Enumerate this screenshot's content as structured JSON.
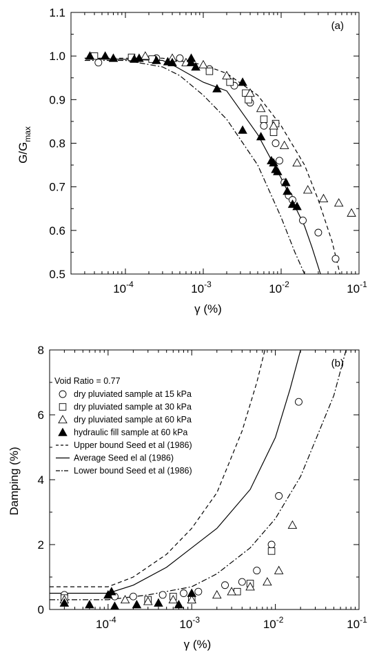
{
  "chart_data": [
    {
      "type": "scatter",
      "panel_label": "(a)",
      "xlabel": "γ (%)",
      "ylabel_base": "G/G",
      "ylabel_sub": "max",
      "x_scale": "log",
      "xlim": [
        2e-05,
        0.1
      ],
      "ylim": [
        0.5,
        1.1
      ],
      "x_ticks": [
        {
          "value": 0.0001,
          "base": "10",
          "exp": "-4"
        },
        {
          "value": 0.001,
          "base": "10",
          "exp": "-3"
        },
        {
          "value": 0.01,
          "base": "10",
          "exp": "-2"
        },
        {
          "value": 0.1,
          "base": "10",
          "exp": "-1"
        }
      ],
      "y_ticks": [
        {
          "value": 0.5,
          "label": "0.5"
        },
        {
          "value": 0.6,
          "label": "0.6"
        },
        {
          "value": 0.7,
          "label": "0.7"
        },
        {
          "value": 0.8,
          "label": "0.8"
        },
        {
          "value": 0.9,
          "label": "0.9"
        },
        {
          "value": 1.0,
          "label": "1.0"
        },
        {
          "value": 1.1,
          "label": "1.1"
        }
      ],
      "series": [
        {
          "marker": "circle",
          "points": [
            [
              4.5e-05,
              0.985
            ],
            [
              0.00025,
              0.995
            ],
            [
              0.0005,
              0.995
            ],
            [
              0.0012,
              0.97
            ],
            [
              0.0025,
              0.932
            ],
            [
              0.004,
              0.893
            ],
            [
              0.006,
              0.84
            ],
            [
              0.0085,
              0.8
            ],
            [
              0.0095,
              0.76
            ],
            [
              0.011,
              0.71
            ],
            [
              0.0125,
              0.68
            ],
            [
              0.014,
              0.67
            ],
            [
              0.019,
              0.623
            ],
            [
              0.03,
              0.595
            ],
            [
              0.05,
              0.535
            ]
          ]
        },
        {
          "marker": "square",
          "points": [
            [
              4e-05,
              1.0
            ],
            [
              0.00012,
              0.997
            ],
            [
              0.00022,
              0.993
            ],
            [
              0.0012,
              0.965
            ],
            [
              0.0022,
              0.94
            ],
            [
              0.0035,
              0.915
            ],
            [
              0.0038,
              0.9
            ],
            [
              0.006,
              0.855
            ],
            [
              0.008,
              0.825
            ],
            [
              0.0085,
              0.845
            ]
          ]
        },
        {
          "marker": "triangle",
          "points": [
            [
              0.00018,
              1.0
            ],
            [
              0.0004,
              0.995
            ],
            [
              0.0006,
              0.985
            ],
            [
              0.001,
              0.98
            ],
            [
              0.002,
              0.955
            ],
            [
              0.004,
              0.915
            ],
            [
              0.0055,
              0.88
            ],
            [
              0.008,
              0.84
            ],
            [
              0.011,
              0.795
            ],
            [
              0.016,
              0.755
            ],
            [
              0.022,
              0.693
            ],
            [
              0.035,
              0.673
            ],
            [
              0.055,
              0.663
            ],
            [
              0.08,
              0.64
            ]
          ]
        },
        {
          "marker": "triangle-filled",
          "points": [
            [
              3.5e-05,
              1.0
            ],
            [
              5.5e-05,
              1.0
            ],
            [
              7e-05,
              0.995
            ],
            [
              0.00013,
              0.993
            ],
            [
              0.00015,
              0.995
            ],
            [
              0.00025,
              0.99
            ],
            [
              0.00035,
              0.987
            ],
            [
              0.0004,
              0.985
            ],
            [
              0.0007,
              0.995
            ],
            [
              0.0007,
              0.985
            ],
            [
              0.0008,
              0.975
            ],
            [
              0.0015,
              0.925
            ],
            [
              0.0032,
              0.94
            ],
            [
              0.0032,
              0.83
            ],
            [
              0.0055,
              0.815
            ],
            [
              0.0075,
              0.76
            ],
            [
              0.008,
              0.755
            ],
            [
              0.0085,
              0.74
            ],
            [
              0.009,
              0.735
            ],
            [
              0.0115,
              0.71
            ],
            [
              0.012,
              0.69
            ],
            [
              0.014,
              0.66
            ],
            [
              0.016,
              0.655
            ]
          ]
        }
      ],
      "curves": [
        {
          "style": "dashed",
          "points": [
            [
              3e-05,
              0.995
            ],
            [
              0.0003,
              0.995
            ],
            [
              0.001,
              0.98
            ],
            [
              0.002,
              0.96
            ],
            [
              0.005,
              0.91
            ],
            [
              0.01,
              0.84
            ],
            [
              0.02,
              0.75
            ],
            [
              0.03,
              0.67
            ],
            [
              0.045,
              0.575
            ],
            [
              0.057,
              0.5
            ]
          ]
        },
        {
          "style": "solid",
          "points": [
            [
              3e-05,
              0.995
            ],
            [
              0.0003,
              0.99
            ],
            [
              0.00045,
              0.975
            ],
            [
              0.001,
              0.94
            ],
            [
              0.002,
              0.92
            ],
            [
              0.005,
              0.82
            ],
            [
              0.01,
              0.72
            ],
            [
              0.02,
              0.61
            ],
            [
              0.025,
              0.56
            ],
            [
              0.032,
              0.5
            ]
          ]
        },
        {
          "style": "dashdot",
          "points": [
            [
              3e-05,
              0.99
            ],
            [
              0.0001,
              0.99
            ],
            [
              0.0003,
              0.975
            ],
            [
              0.0005,
              0.955
            ],
            [
              0.001,
              0.91
            ],
            [
              0.002,
              0.855
            ],
            [
              0.005,
              0.75
            ],
            [
              0.01,
              0.63
            ],
            [
              0.015,
              0.55
            ],
            [
              0.02,
              0.5
            ]
          ]
        }
      ]
    },
    {
      "type": "scatter",
      "panel_label": "(b)",
      "xlabel": "γ (%)",
      "ylabel": "Damping (%)",
      "x_scale": "log",
      "xlim": [
        2e-05,
        0.1
      ],
      "ylim": [
        0,
        8
      ],
      "x_ticks": [
        {
          "value": 0.0001,
          "base": "10",
          "exp": "-4"
        },
        {
          "value": 0.001,
          "base": "10",
          "exp": "-3"
        },
        {
          "value": 0.01,
          "base": "10",
          "exp": "-2"
        },
        {
          "value": 0.1,
          "base": "10",
          "exp": "-1"
        }
      ],
      "y_ticks": [
        {
          "value": 0,
          "label": "0"
        },
        {
          "value": 2,
          "label": "2"
        },
        {
          "value": 4,
          "label": "4"
        },
        {
          "value": 6,
          "label": "6"
        },
        {
          "value": 8,
          "label": "8"
        }
      ],
      "legend": {
        "title": "Void Ratio = 0.77",
        "entries": [
          {
            "symbol": "circle",
            "label": "dry pluviated sample at 15 kPa"
          },
          {
            "symbol": "square",
            "label": "dry pluviated sample at 30 kPa"
          },
          {
            "symbol": "triangle",
            "label": "dry pluviated sample at 60 kPa"
          },
          {
            "symbol": "triangle-filled",
            "label": "hydraulic fill sample at 60 kPa"
          },
          {
            "symbol": "dashed",
            "label": "Upper bound Seed et al (1986)"
          },
          {
            "symbol": "solid",
            "label": "Average Seed el al (1986)"
          },
          {
            "symbol": "dashdot",
            "label": "Lower bound Seed et al (1986)"
          }
        ]
      },
      "series": [
        {
          "marker": "circle",
          "points": [
            [
              3e-05,
              0.45
            ],
            [
              0.00012,
              0.4
            ],
            [
              0.0002,
              0.4
            ],
            [
              0.00045,
              0.45
            ],
            [
              0.0008,
              0.5
            ],
            [
              0.0012,
              0.55
            ],
            [
              0.0025,
              0.75
            ],
            [
              0.004,
              0.85
            ],
            [
              0.006,
              1.2
            ],
            [
              0.009,
              2.0
            ],
            [
              0.011,
              3.5
            ],
            [
              0.019,
              6.4
            ]
          ]
        },
        {
          "marker": "square",
          "points": [
            [
              3e-05,
              0.35
            ],
            [
              0.0003,
              0.3
            ],
            [
              0.0006,
              0.4
            ],
            [
              0.001,
              0.3
            ],
            [
              0.0035,
              0.55
            ],
            [
              0.005,
              0.8
            ],
            [
              0.009,
              1.8
            ]
          ]
        },
        {
          "marker": "triangle",
          "points": [
            [
              3e-05,
              0.3
            ],
            [
              0.00016,
              0.3
            ],
            [
              0.0003,
              0.25
            ],
            [
              0.0006,
              0.3
            ],
            [
              0.001,
              0.3
            ],
            [
              0.002,
              0.45
            ],
            [
              0.003,
              0.55
            ],
            [
              0.005,
              0.7
            ],
            [
              0.008,
              0.85
            ],
            [
              0.011,
              1.2
            ],
            [
              0.016,
              2.6
            ]
          ]
        },
        {
          "marker": "triangle-filled",
          "points": [
            [
              3e-05,
              0.2
            ],
            [
              6e-05,
              0.15
            ],
            [
              0.0001,
              0.45
            ],
            [
              0.00011,
              0.55
            ],
            [
              0.00012,
              0.1
            ],
            [
              0.00022,
              0.15
            ],
            [
              0.0004,
              0.2
            ],
            [
              0.0007,
              0.15
            ],
            [
              0.001,
              0.5
            ]
          ]
        }
      ],
      "curves": [
        {
          "style": "dashed",
          "points": [
            [
              2e-05,
              0.7
            ],
            [
              0.0001,
              0.7
            ],
            [
              0.0002,
              1.0
            ],
            [
              0.0005,
              1.7
            ],
            [
              0.001,
              2.5
            ],
            [
              0.002,
              3.6
            ],
            [
              0.004,
              5.5
            ],
            [
              0.006,
              7.0
            ],
            [
              0.0075,
              8.0
            ]
          ]
        },
        {
          "style": "solid",
          "points": [
            [
              2e-05,
              0.5
            ],
            [
              0.0001,
              0.5
            ],
            [
              0.0002,
              0.75
            ],
            [
              0.0005,
              1.3
            ],
            [
              0.001,
              1.9
            ],
            [
              0.002,
              2.5
            ],
            [
              0.005,
              3.7
            ],
            [
              0.01,
              5.3
            ],
            [
              0.015,
              6.8
            ],
            [
              0.02,
              8.0
            ]
          ]
        },
        {
          "style": "dashdot",
          "points": [
            [
              2e-05,
              0.3
            ],
            [
              0.0001,
              0.3
            ],
            [
              0.0003,
              0.45
            ],
            [
              0.001,
              0.7
            ],
            [
              0.002,
              1.1
            ],
            [
              0.005,
              1.9
            ],
            [
              0.01,
              2.8
            ],
            [
              0.02,
              4.1
            ],
            [
              0.03,
              5.2
            ],
            [
              0.05,
              6.6
            ],
            [
              0.07,
              8.0
            ]
          ]
        }
      ]
    }
  ]
}
